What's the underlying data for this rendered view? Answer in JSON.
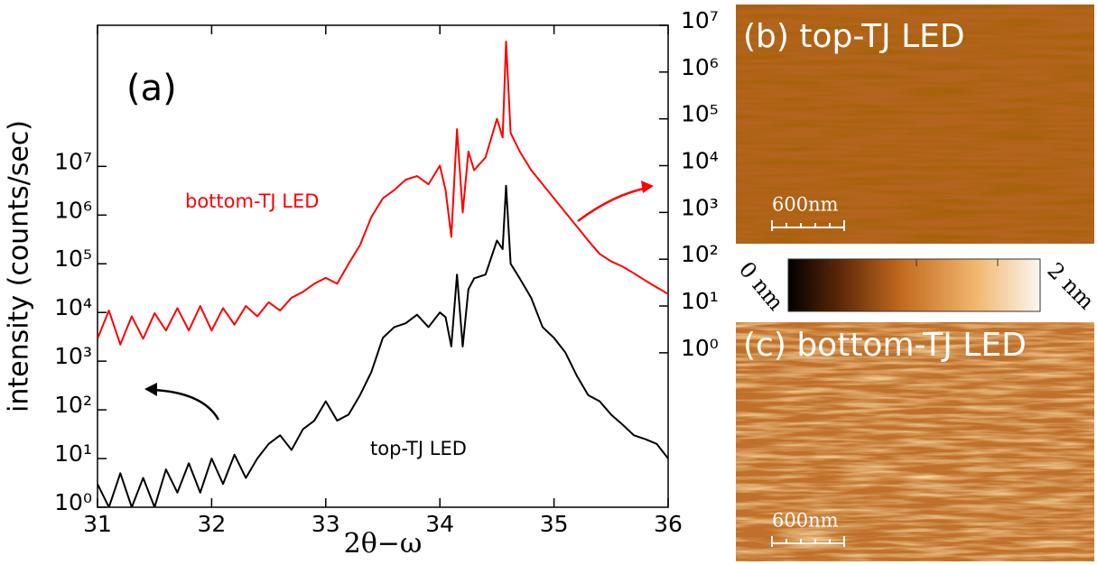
{
  "chart_data": {
    "type": "line",
    "xlabel": "2θ−ω",
    "ylabel": "intensity (counts/sec)",
    "annotations": [
      "(a)",
      "bottom-TJ LED",
      "top-TJ LED"
    ],
    "yscale": "log",
    "xlim": [
      31,
      36
    ],
    "xticks": [
      31,
      32,
      33,
      34,
      35,
      36
    ],
    "ylim": [
      1,
      7900000000
    ],
    "yticks": [
      {
        "value": 1,
        "label": "10⁰"
      },
      {
        "value": 10,
        "label": "10¹"
      },
      {
        "value": 100,
        "label": "10²"
      },
      {
        "value": 1000,
        "label": "10³"
      },
      {
        "value": 10000,
        "label": "10⁴"
      },
      {
        "value": 100000,
        "label": "10⁵"
      },
      {
        "value": 1000000,
        "label": "10⁶"
      },
      {
        "value": 10000000,
        "label": "10⁷"
      }
    ],
    "y2lim": [
      0.0005,
      10000000
    ],
    "y2ticks": [
      {
        "value": 1,
        "label": "10⁰"
      },
      {
        "value": 10,
        "label": "10¹"
      },
      {
        "value": 100,
        "label": "10²"
      },
      {
        "value": 1000,
        "label": "10³"
      },
      {
        "value": 10000,
        "label": "10⁴"
      },
      {
        "value": 100000,
        "label": "10⁵"
      },
      {
        "value": 1000000,
        "label": "10⁶"
      },
      {
        "value": 10000000,
        "label": "10⁷"
      }
    ],
    "x": [
      31.0,
      31.1,
      31.2,
      31.3,
      31.4,
      31.5,
      31.6,
      31.7,
      31.8,
      31.9,
      32.0,
      32.1,
      32.2,
      32.3,
      32.4,
      32.5,
      32.6,
      32.7,
      32.8,
      32.9,
      33.0,
      33.1,
      33.2,
      33.3,
      33.4,
      33.5,
      33.6,
      33.7,
      33.8,
      33.9,
      34.0,
      34.05,
      34.1,
      34.15,
      34.2,
      34.25,
      34.3,
      34.4,
      34.5,
      34.55,
      34.58,
      34.62,
      34.7,
      34.8,
      34.9,
      35.0,
      35.1,
      35.2,
      35.3,
      35.4,
      35.5,
      35.6,
      35.7,
      35.8,
      35.9,
      36.0
    ],
    "series": [
      {
        "name": "bottom-TJ LED",
        "color": "#ff0000",
        "axis": "y2",
        "values": [
          2,
          8,
          1.5,
          6,
          2,
          7,
          3,
          9,
          3,
          10,
          3,
          9,
          4,
          10,
          6,
          12,
          8,
          15,
          20,
          30,
          40,
          30,
          80,
          200,
          800,
          2000,
          3000,
          5000,
          6000,
          4000,
          10000,
          3000,
          300,
          60000,
          1000,
          20000,
          8000,
          15000,
          100000,
          40000,
          4500000,
          50000,
          20000,
          8000,
          4000,
          2000,
          1000,
          500,
          250,
          130,
          90,
          70,
          50,
          35,
          25,
          18
        ]
      },
      {
        "name": "top-TJ LED",
        "color": "#000000",
        "values": [
          3,
          1,
          5,
          1,
          4,
          1,
          6,
          2,
          8,
          2,
          10,
          3,
          12,
          4,
          10,
          20,
          30,
          15,
          40,
          60,
          150,
          60,
          80,
          200,
          600,
          3000,
          5000,
          6000,
          9000,
          5000,
          10000,
          8000,
          2000,
          60000,
          2000,
          30000,
          50000,
          60000,
          300000,
          200000,
          4000000,
          100000,
          50000,
          20000,
          5000,
          3000,
          1500,
          500,
          200,
          150,
          80,
          50,
          30,
          25,
          20,
          10
        ]
      }
    ]
  },
  "afm": {
    "panels": [
      {
        "label": "(b) top-TJ LED",
        "scale_bar": "600nm"
      },
      {
        "label": "(c) bottom-TJ LED",
        "scale_bar": "600nm"
      }
    ],
    "colorbar": {
      "min_label": "0 nm",
      "max_label": "2 nm"
    }
  }
}
